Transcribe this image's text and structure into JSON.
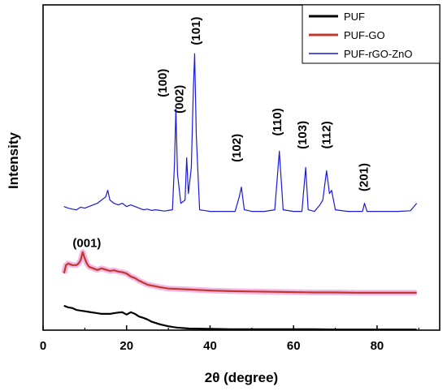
{
  "chart_data": {
    "type": "line",
    "xlabel": "2θ (degree)",
    "ylabel": "Intensity",
    "xlim": [
      0,
      95
    ],
    "xticks": [
      0,
      20,
      40,
      60,
      80
    ],
    "grid": false,
    "legend_position": "top-right",
    "series": [
      {
        "name": "PUF",
        "color": "#000000",
        "x": [
          5,
          6,
          7,
          8,
          9,
          10,
          11,
          12,
          13,
          14,
          15,
          16,
          17,
          18,
          19,
          20,
          21,
          22,
          23,
          24,
          25,
          26,
          27,
          28,
          30,
          32,
          35,
          40,
          45,
          50,
          55,
          60,
          65,
          70,
          75,
          80,
          85,
          89.5
        ],
        "y": [
          0.075,
          0.07,
          0.068,
          0.062,
          0.06,
          0.058,
          0.056,
          0.054,
          0.052,
          0.05,
          0.05,
          0.05,
          0.052,
          0.054,
          0.055,
          0.048,
          0.055,
          0.05,
          0.042,
          0.038,
          0.033,
          0.026,
          0.022,
          0.018,
          0.012,
          0.008,
          0.005,
          0.004,
          0.003,
          0.003,
          0.003,
          0.003,
          0.003,
          0.002,
          0.002,
          0.002,
          0.002,
          0.002
        ]
      },
      {
        "name": "PUF-GO",
        "color": "#c0392b",
        "x": [
          5,
          5.5,
          6,
          7,
          8,
          8.5,
          9,
          9.5,
          10,
          10.5,
          11,
          12,
          13,
          14,
          15,
          16,
          17,
          18,
          19,
          20,
          21,
          22,
          23,
          25,
          28,
          30,
          35,
          40,
          45,
          50,
          55,
          60,
          65,
          70,
          75,
          80,
          85,
          89.5
        ],
        "y": [
          0.175,
          0.2,
          0.205,
          0.2,
          0.2,
          0.205,
          0.215,
          0.24,
          0.22,
          0.205,
          0.195,
          0.19,
          0.185,
          0.19,
          0.186,
          0.182,
          0.184,
          0.18,
          0.178,
          0.174,
          0.165,
          0.16,
          0.152,
          0.14,
          0.132,
          0.128,
          0.125,
          0.122,
          0.12,
          0.119,
          0.118,
          0.117,
          0.116,
          0.116,
          0.115,
          0.115,
          0.115,
          0.115
        ]
      },
      {
        "name": "PUF-rGO-ZnO",
        "color": "#1a1adb",
        "x": [
          5,
          6,
          7,
          8,
          9,
          10,
          11,
          12,
          13,
          14,
          15,
          15.5,
          16,
          17,
          18,
          19,
          20,
          21,
          22,
          23,
          24,
          25,
          26,
          27,
          28,
          29,
          30,
          31,
          31.5,
          31.8,
          32.2,
          33,
          34,
          34.4,
          34.8,
          35.5,
          36,
          36.3,
          36.7,
          37.5,
          40,
          43,
          46,
          47,
          47.5,
          48.2,
          50,
          53,
          55.5,
          56.6,
          57.5,
          60,
          62,
          62.9,
          63.5,
          65,
          66.3,
          67,
          67.9,
          68.6,
          69.1,
          70,
          73,
          76.5,
          77,
          77.6,
          80,
          85,
          88,
          89.5
        ],
        "y": [
          0.38,
          0.375,
          0.372,
          0.37,
          0.378,
          0.375,
          0.38,
          0.385,
          0.39,
          0.4,
          0.41,
          0.43,
          0.4,
          0.39,
          0.385,
          0.39,
          0.38,
          0.385,
          0.38,
          0.375,
          0.37,
          0.372,
          0.368,
          0.37,
          0.368,
          0.366,
          0.368,
          0.37,
          0.52,
          0.68,
          0.48,
          0.39,
          0.4,
          0.53,
          0.42,
          0.5,
          0.74,
          0.85,
          0.6,
          0.37,
          0.365,
          0.365,
          0.365,
          0.41,
          0.44,
          0.37,
          0.365,
          0.365,
          0.37,
          0.55,
          0.37,
          0.365,
          0.365,
          0.5,
          0.37,
          0.365,
          0.385,
          0.4,
          0.49,
          0.42,
          0.43,
          0.37,
          0.365,
          0.365,
          0.39,
          0.365,
          0.365,
          0.365,
          0.367,
          0.39
        ]
      }
    ],
    "annotations": [
      {
        "text": "(001)",
        "x": 10.5,
        "y": 0.255
      },
      {
        "text": "(100)",
        "x": 29.6,
        "y": 0.76
      },
      {
        "text": "(002)",
        "x": 33.6,
        "y": 0.71
      },
      {
        "text": "(101)",
        "x": 37.6,
        "y": 0.92
      },
      {
        "text": "(102)",
        "x": 47.3,
        "y": 0.56
      },
      {
        "text": "(110)",
        "x": 57.0,
        "y": 0.64
      },
      {
        "text": "(103)",
        "x": 63.1,
        "y": 0.6
      },
      {
        "text": "(112)",
        "x": 68.8,
        "y": 0.6
      },
      {
        "text": "(201)",
        "x": 77.8,
        "y": 0.47
      }
    ]
  }
}
